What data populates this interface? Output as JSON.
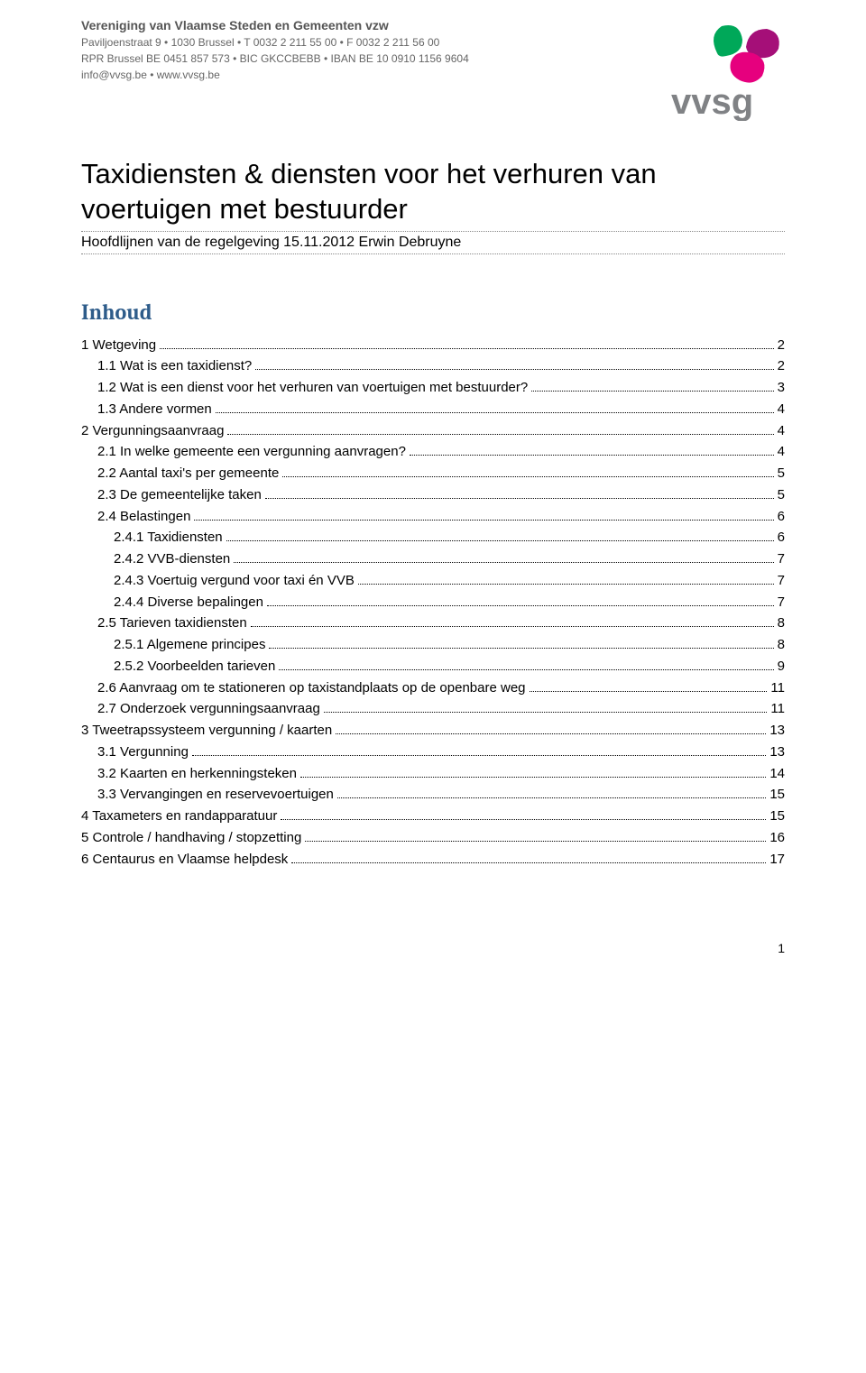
{
  "header": {
    "org_name": "Vereniging van Vlaamse Steden en Gemeenten vzw",
    "line1": "Paviljoenstraat 9 • 1030 Brussel • T 0032 2 211 55 00 • F 0032 2 211 56 00",
    "line2": "RPR Brussel BE 0451 857 573 • BIC GKCCBEBB • IBAN BE 10 0910 1156 9604",
    "line3": "info@vvsg.be • www.vvsg.be"
  },
  "logo": {
    "text": "vvsg",
    "leaf1_color": "#00a859",
    "leaf2_color": "#a50f78",
    "leaf3_color": "#e6007e",
    "text_color": "#808285"
  },
  "title": "Taxidiensten & diensten voor het verhuren van voertuigen met bestuurder",
  "subtitle": "Hoofdlijnen van de regelgeving 15.11.2012 Erwin Debruyne",
  "toc_heading": "Inhoud",
  "toc": [
    {
      "indent": 0,
      "label": "1 Wetgeving",
      "page": "2"
    },
    {
      "indent": 1,
      "label": "1.1 Wat is een taxidienst?",
      "page": "2"
    },
    {
      "indent": 1,
      "label": "1.2 Wat is een dienst voor het verhuren van voertuigen met bestuurder?",
      "page": "3"
    },
    {
      "indent": 1,
      "label": "1.3 Andere vormen",
      "page": "4"
    },
    {
      "indent": 0,
      "label": "2 Vergunningsaanvraag",
      "page": "4"
    },
    {
      "indent": 1,
      "label": "2.1 In welke gemeente een vergunning aanvragen?",
      "page": "4"
    },
    {
      "indent": 1,
      "label": "2.2 Aantal taxi's per gemeente",
      "page": "5"
    },
    {
      "indent": 1,
      "label": "2.3 De gemeentelijke taken",
      "page": "5"
    },
    {
      "indent": 1,
      "label": "2.4 Belastingen",
      "page": "6"
    },
    {
      "indent": 2,
      "label": "2.4.1 Taxidiensten",
      "page": "6"
    },
    {
      "indent": 2,
      "label": "2.4.2 VVB-diensten",
      "page": "7"
    },
    {
      "indent": 2,
      "label": "2.4.3 Voertuig vergund voor taxi én VVB",
      "page": "7"
    },
    {
      "indent": 2,
      "label": "2.4.4 Diverse bepalingen",
      "page": "7"
    },
    {
      "indent": 1,
      "label": "2.5 Tarieven taxidiensten",
      "page": "8"
    },
    {
      "indent": 2,
      "label": "2.5.1 Algemene principes",
      "page": "8"
    },
    {
      "indent": 2,
      "label": "2.5.2 Voorbeelden tarieven",
      "page": "9"
    },
    {
      "indent": 1,
      "label": "2.6 Aanvraag om te stationeren op taxistandplaats op de openbare weg",
      "page": "11"
    },
    {
      "indent": 1,
      "label": "2.7 Onderzoek vergunningsaanvraag",
      "page": "11"
    },
    {
      "indent": 0,
      "label": "3 Tweetrapssysteem vergunning / kaarten",
      "page": "13"
    },
    {
      "indent": 1,
      "label": "3.1 Vergunning",
      "page": "13"
    },
    {
      "indent": 1,
      "label": "3.2 Kaarten en herkenningsteken",
      "page": "14"
    },
    {
      "indent": 1,
      "label": "3.3 Vervangingen en reservevoertuigen",
      "page": "15"
    },
    {
      "indent": 0,
      "label": "4 Taxameters en randapparatuur",
      "page": "15"
    },
    {
      "indent": 0,
      "label": "5 Controle / handhaving / stopzetting",
      "page": "16"
    },
    {
      "indent": 0,
      "label": "6 Centaurus en Vlaamse helpdesk",
      "page": "17"
    }
  ],
  "page_number": "1"
}
